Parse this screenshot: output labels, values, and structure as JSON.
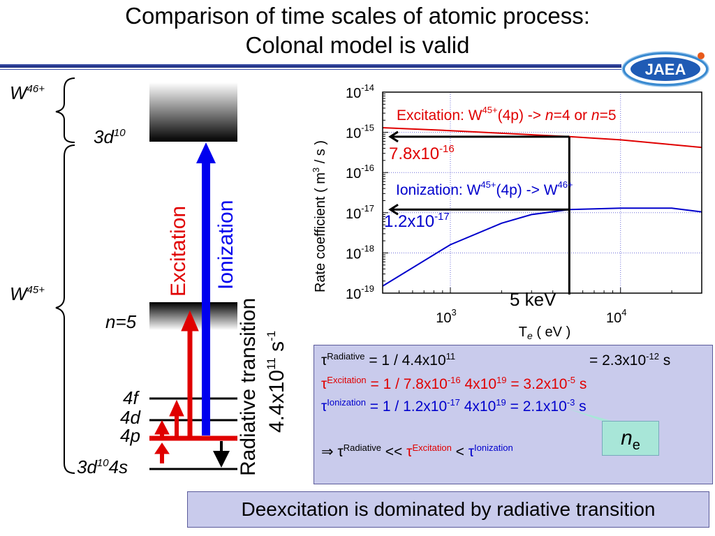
{
  "title": {
    "line1": "Comparison of time scales of atomic process:",
    "line2": "Colonal model is valid"
  },
  "logo": {
    "text": "JAEA"
  },
  "level_diagram": {
    "w46": "W",
    "w46_charge": "46+",
    "w45": "W",
    "w45_charge": "45+",
    "level_3d10": "3d",
    "level_3d10_sup": "10",
    "level_n5": "n=5",
    "level_4f": "4f",
    "level_4d": "4d",
    "level_4p": "4p",
    "ground": "3d",
    "ground_sup": "10",
    "ground_tail": "4s",
    "excitation_label": "Excitation",
    "ionization_label": "Ionization",
    "radiative_label": "Radiative transition",
    "radiative_rate_base": "4.4x10",
    "radiative_rate_exp": "11",
    "radiative_rate_unit": " s",
    "radiative_rate_unit_exp": "-1"
  },
  "chart_data": {
    "type": "line",
    "xscale": "log",
    "yscale": "log",
    "xlim": [
      400,
      30000
    ],
    "ylim": [
      1e-19,
      1e-14
    ],
    "xlabel": "T",
    "xlabel_sub": "e",
    "xlabel_unit": " ( eV )",
    "ylabel_pre": "Rate coefficient ( m",
    "ylabel_sup": "3",
    "ylabel_post": " / s )",
    "x_ticks": [
      {
        "base": "10",
        "exp": "3",
        "value": 1000
      },
      {
        "base": "10",
        "exp": "4",
        "value": 10000
      }
    ],
    "y_ticks": [
      {
        "base": "10",
        "exp": "-14",
        "value": 1e-14
      },
      {
        "base": "10",
        "exp": "-15",
        "value": 1e-15
      },
      {
        "base": "10",
        "exp": "-16",
        "value": 1e-16
      },
      {
        "base": "10",
        "exp": "-17",
        "value": 1e-17
      },
      {
        "base": "10",
        "exp": "-18",
        "value": 1e-18
      },
      {
        "base": "10",
        "exp": "-19",
        "value": 1e-19
      }
    ],
    "grid": true,
    "series": [
      {
        "name": "Excitation: W45+(4p) -> n=4 or n=5",
        "color": "#e00000",
        "x": [
          400,
          1000,
          5000,
          10000,
          30000
        ],
        "y": [
          1.3e-15,
          1.1e-15,
          7.8e-16,
          6.5e-16,
          4.2e-16
        ]
      },
      {
        "name": "Ionization: W45+(4p) -> W46+",
        "color": "#0000cc",
        "x": [
          400,
          1000,
          2000,
          3000,
          5000,
          10000,
          20000,
          30000
        ],
        "y": [
          1.5e-19,
          1.6e-18,
          5.5e-18,
          9e-18,
          1.2e-17,
          1.3e-17,
          1.3e-17,
          1.05e-17
        ]
      }
    ],
    "annotations": {
      "exc_label_pre": "Excitation: W",
      "exc_label_sup": "45+",
      "exc_label_mid": "(4p) -> ",
      "exc_label_n1": "n",
      "exc_label_n1_val": "=4 or ",
      "exc_label_n2": "n",
      "exc_label_n2_val": "=5",
      "ion_label_pre": "Ionization: W",
      "ion_label_sup": "45+",
      "ion_label_mid": "(4p) -> W",
      "ion_label_sup2": "46+",
      "exc_value_base": "7.8x10",
      "exc_value_exp": "-16",
      "ion_value_base": "1.2x10",
      "ion_value_exp": "-17",
      "marker_T": "5 keV",
      "marker_T_value": 5000
    }
  },
  "formulas": {
    "tau": "τ",
    "rad_sup": "Radiative",
    "rad_expr": " = 1 / 4.4x10",
    "rad_expr_exp": "11",
    "rad_result": "= 2.3x10",
    "rad_result_exp": "-12",
    "rad_result_unit": " s",
    "exc_sup": "Excitation",
    "exc_expr": " = 1 / 7.8x10",
    "exc_expr_exp": "-16",
    "exc_expr2": " 4x10",
    "exc_expr2_exp": "19",
    "exc_result": " = 3.2x10",
    "exc_result_exp": "-5",
    "exc_result_unit": " s",
    "ion_sup": "Ionization",
    "ion_expr": " = 1 / 1.2x10",
    "ion_expr_exp": "-17",
    "ion_expr2": " 4x10",
    "ion_expr2_exp": "19",
    "ion_result": " = 2.1x10",
    "ion_result_exp": "-3",
    "ion_result_unit": " s",
    "implies": "⇒ ",
    "cmp_lt2": " << ",
    "cmp_lt": " < "
  },
  "ne_label": {
    "n": "n",
    "sub": "e"
  },
  "conclusion": "Deexcitation is dominated by radiative transition"
}
